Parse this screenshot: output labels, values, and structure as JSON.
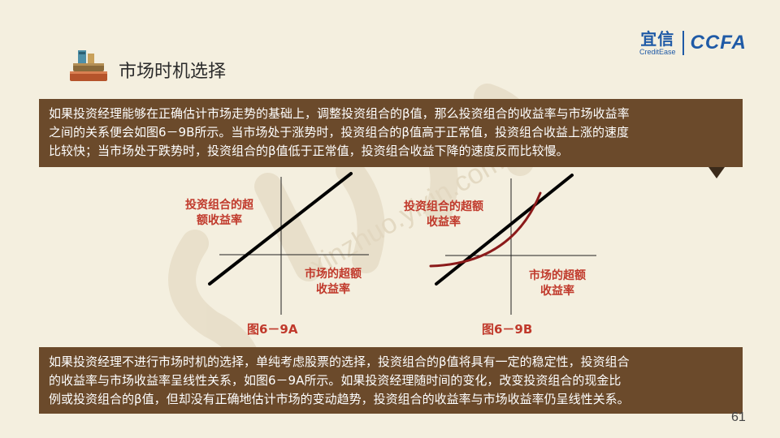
{
  "logo": {
    "cn": "宜信",
    "en": "CreditEase",
    "ccfa": "CCFA"
  },
  "title": "市场时机选择",
  "box1": {
    "lines": [
      "如果投资经理能够在正确估计市场走势的基础上，调整投资组合的β值，那么投资组合的收益率与市场收益率",
      "之间的关系便会如图6－9B所示。当市场处于涨势时，投资组合的β值高于正常值，投资组合收益上涨的速度",
      "比较快；当市场处于跌势时，投资组合的β值低于正常值，投资组合收益下降的速度反而比较慢。"
    ]
  },
  "chart_a": {
    "ylabel_line1": "投资组合的超",
    "ylabel_line2": "额收益率",
    "xlabel_line1": "市场的超额",
    "xlabel_line2": "收益率",
    "caption": "图6－9A"
  },
  "chart_b": {
    "ylabel_line1": "投资组合的超额",
    "ylabel_line2": "收益率",
    "xlabel_line1": "市场的超额",
    "xlabel_line2": "收益率",
    "caption": "图6－9B"
  },
  "box2": {
    "lines": [
      "如果投资经理不进行市场时机的选择，单纯考虑股票的选择，投资组合的β值将具有一定的稳定性，投资组合",
      "的收益率与市场收益率呈线性关系，如图6－9A所示。如果投资经理随时间的变化，改变投资组合的现金比",
      "例或投资组合的β值，但却没有正确地估计市场的变动趋势，投资组合的收益率与市场收益率仍呈线性关系。"
    ]
  },
  "page_number": "61",
  "colors": {
    "box": "#6b4a2b",
    "label": "#c0392b",
    "curve": "#8b1a1a",
    "background": "#f4efdf"
  }
}
